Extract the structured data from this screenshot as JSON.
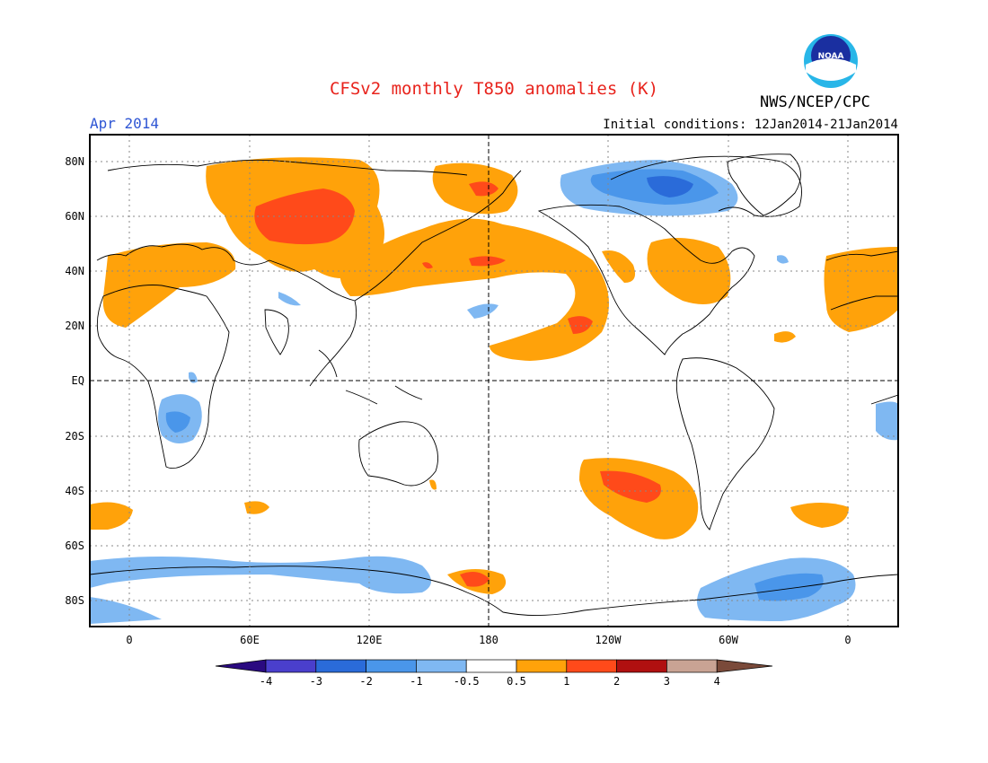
{
  "title": "CFSv2 monthly T850 anomalies (K)",
  "valid_month": "Apr 2014",
  "initial_conditions": "Initial conditions: 12Jan2014-21Jan2014",
  "organization": "NWS/NCEP/CPC",
  "logo_text": "NOAA",
  "map": {
    "lon_ticks": [
      "0",
      "60E",
      "120E",
      "180",
      "120W",
      "60W",
      "0"
    ],
    "lat_ticks": [
      "80N",
      "60N",
      "40N",
      "20N",
      "EQ",
      "20S",
      "40S",
      "60S",
      "80S"
    ]
  },
  "colorbar": {
    "tick_labels": [
      "-4",
      "-3",
      "-2",
      "-1",
      "-0.5",
      "0.5",
      "1",
      "2",
      "3",
      "4"
    ],
    "colors": [
      "#2a0a80",
      "#4a3fcc",
      "#2a6bd9",
      "#4a96ea",
      "#7fb8f2",
      "#ffffff",
      "#ffa20a",
      "#ff4a1a",
      "#b01010",
      "#c9a394",
      "#7a4a3a"
    ]
  },
  "colors": {
    "warm_1": "#ffa20a",
    "warm_2": "#ff4a1a",
    "cool_1": "#7fb8f2",
    "cool_2": "#4a96ea",
    "cool_3": "#2a6bd9"
  }
}
